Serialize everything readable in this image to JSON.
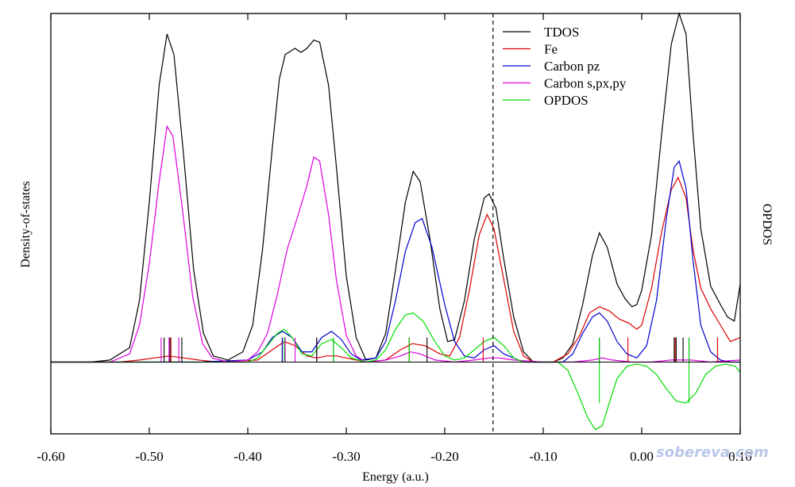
{
  "chart_data": {
    "type": "line",
    "title": "",
    "xlabel": "Energy (a.u.)",
    "ylabel_left": "Density-of-states",
    "ylabel_right": "OPDOS",
    "xlim": [
      -0.6,
      0.1
    ],
    "x_ticks": [
      -0.6,
      -0.5,
      -0.4,
      -0.3,
      -0.2,
      -0.1,
      0.0,
      0.1
    ],
    "x_tick_labels": [
      "-0.60",
      "-0.50",
      "-0.40",
      "-0.30",
      "-0.20",
      "-0.10",
      "0.00",
      "0.10"
    ],
    "ylim": [
      -0.35,
      1.7
    ],
    "opdos_scale": 1.0,
    "homo_line_x": -0.151,
    "legend_position": "top-right",
    "grid": false,
    "series": [
      {
        "name": "TDOS",
        "color": "#000000",
        "points": [
          [
            -0.6,
            0.0
          ],
          [
            -0.58,
            0.0
          ],
          [
            -0.56,
            0.0
          ],
          [
            -0.54,
            0.01
          ],
          [
            -0.52,
            0.07
          ],
          [
            -0.51,
            0.3
          ],
          [
            -0.5,
            0.78
          ],
          [
            -0.49,
            1.35
          ],
          [
            -0.482,
            1.6
          ],
          [
            -0.475,
            1.5
          ],
          [
            -0.465,
            1.0
          ],
          [
            -0.455,
            0.45
          ],
          [
            -0.445,
            0.14
          ],
          [
            -0.435,
            0.03
          ],
          [
            -0.42,
            0.01
          ],
          [
            -0.405,
            0.05
          ],
          [
            -0.395,
            0.18
          ],
          [
            -0.385,
            0.55
          ],
          [
            -0.375,
            1.05
          ],
          [
            -0.368,
            1.38
          ],
          [
            -0.362,
            1.5
          ],
          [
            -0.352,
            1.53
          ],
          [
            -0.346,
            1.51
          ],
          [
            -0.34,
            1.53
          ],
          [
            -0.333,
            1.57
          ],
          [
            -0.327,
            1.56
          ],
          [
            -0.318,
            1.35
          ],
          [
            -0.31,
            0.95
          ],
          [
            -0.3,
            0.42
          ],
          [
            -0.29,
            0.12
          ],
          [
            -0.28,
            0.01
          ],
          [
            -0.27,
            0.02
          ],
          [
            -0.26,
            0.14
          ],
          [
            -0.25,
            0.45
          ],
          [
            -0.24,
            0.78
          ],
          [
            -0.232,
            0.93
          ],
          [
            -0.225,
            0.88
          ],
          [
            -0.215,
            0.6
          ],
          [
            -0.205,
            0.26
          ],
          [
            -0.197,
            0.1
          ],
          [
            -0.19,
            0.11
          ],
          [
            -0.18,
            0.3
          ],
          [
            -0.17,
            0.6
          ],
          [
            -0.16,
            0.8
          ],
          [
            -0.155,
            0.82
          ],
          [
            -0.148,
            0.75
          ],
          [
            -0.14,
            0.5
          ],
          [
            -0.13,
            0.22
          ],
          [
            -0.12,
            0.05
          ],
          [
            -0.11,
            0.0
          ],
          [
            -0.1,
            0.0
          ],
          [
            -0.09,
            0.0
          ],
          [
            -0.08,
            0.02
          ],
          [
            -0.07,
            0.09
          ],
          [
            -0.06,
            0.28
          ],
          [
            -0.05,
            0.52
          ],
          [
            -0.043,
            0.63
          ],
          [
            -0.035,
            0.56
          ],
          [
            -0.025,
            0.38
          ],
          [
            -0.017,
            0.31
          ],
          [
            -0.01,
            0.27
          ],
          [
            -0.005,
            0.28
          ],
          [
            0.0,
            0.35
          ],
          [
            0.01,
            0.62
          ],
          [
            0.02,
            1.1
          ],
          [
            0.03,
            1.55
          ],
          [
            0.038,
            1.7
          ],
          [
            0.045,
            1.6
          ],
          [
            0.052,
            1.12
          ],
          [
            0.06,
            0.65
          ],
          [
            0.07,
            0.37
          ],
          [
            0.08,
            0.28
          ],
          [
            0.087,
            0.22
          ],
          [
            0.094,
            0.2
          ],
          [
            0.1,
            0.38
          ]
        ]
      },
      {
        "name": "Fe",
        "color": "#dd0000",
        "points": [
          [
            -0.6,
            0.0
          ],
          [
            -0.53,
            0.0
          ],
          [
            -0.51,
            0.01
          ],
          [
            -0.495,
            0.02
          ],
          [
            -0.48,
            0.03
          ],
          [
            -0.465,
            0.02
          ],
          [
            -0.45,
            0.01
          ],
          [
            -0.43,
            0.0
          ],
          [
            -0.39,
            0.01
          ],
          [
            -0.375,
            0.06
          ],
          [
            -0.363,
            0.1
          ],
          [
            -0.352,
            0.08
          ],
          [
            -0.34,
            0.03
          ],
          [
            -0.33,
            0.02
          ],
          [
            -0.32,
            0.03
          ],
          [
            -0.31,
            0.03
          ],
          [
            -0.3,
            0.02
          ],
          [
            -0.28,
            0.0
          ],
          [
            -0.26,
            0.01
          ],
          [
            -0.245,
            0.06
          ],
          [
            -0.233,
            0.09
          ],
          [
            -0.22,
            0.08
          ],
          [
            -0.205,
            0.04
          ],
          [
            -0.195,
            0.03
          ],
          [
            -0.185,
            0.12
          ],
          [
            -0.175,
            0.35
          ],
          [
            -0.165,
            0.62
          ],
          [
            -0.157,
            0.72
          ],
          [
            -0.15,
            0.65
          ],
          [
            -0.14,
            0.4
          ],
          [
            -0.13,
            0.15
          ],
          [
            -0.12,
            0.03
          ],
          [
            -0.11,
            0.0
          ],
          [
            -0.09,
            0.0
          ],
          [
            -0.075,
            0.04
          ],
          [
            -0.063,
            0.13
          ],
          [
            -0.053,
            0.24
          ],
          [
            -0.043,
            0.27
          ],
          [
            -0.033,
            0.25
          ],
          [
            -0.023,
            0.21
          ],
          [
            -0.013,
            0.19
          ],
          [
            -0.005,
            0.16
          ],
          [
            0.0,
            0.18
          ],
          [
            0.01,
            0.36
          ],
          [
            0.02,
            0.63
          ],
          [
            0.03,
            0.84
          ],
          [
            0.037,
            0.9
          ],
          [
            0.045,
            0.8
          ],
          [
            0.052,
            0.55
          ],
          [
            0.06,
            0.36
          ],
          [
            0.07,
            0.26
          ],
          [
            0.08,
            0.18
          ],
          [
            0.09,
            0.1
          ],
          [
            0.1,
            0.12
          ]
        ]
      },
      {
        "name": "Carbon pz",
        "color": "#0000cc",
        "points": [
          [
            -0.6,
            0.0
          ],
          [
            -0.52,
            0.0
          ],
          [
            -0.5,
            0.0
          ],
          [
            -0.45,
            0.0
          ],
          [
            -0.4,
            0.01
          ],
          [
            -0.385,
            0.05
          ],
          [
            -0.375,
            0.12
          ],
          [
            -0.365,
            0.15
          ],
          [
            -0.355,
            0.12
          ],
          [
            -0.345,
            0.05
          ],
          [
            -0.335,
            0.05
          ],
          [
            -0.325,
            0.12
          ],
          [
            -0.315,
            0.15
          ],
          [
            -0.305,
            0.11
          ],
          [
            -0.295,
            0.04
          ],
          [
            -0.285,
            0.01
          ],
          [
            -0.27,
            0.02
          ],
          [
            -0.26,
            0.1
          ],
          [
            -0.25,
            0.3
          ],
          [
            -0.24,
            0.54
          ],
          [
            -0.23,
            0.68
          ],
          [
            -0.223,
            0.7
          ],
          [
            -0.213,
            0.56
          ],
          [
            -0.2,
            0.28
          ],
          [
            -0.19,
            0.1
          ],
          [
            -0.18,
            0.03
          ],
          [
            -0.17,
            0.02
          ],
          [
            -0.16,
            0.06
          ],
          [
            -0.15,
            0.08
          ],
          [
            -0.14,
            0.04
          ],
          [
            -0.12,
            0.0
          ],
          [
            -0.1,
            0.0
          ],
          [
            -0.08,
            0.0
          ],
          [
            -0.07,
            0.04
          ],
          [
            -0.06,
            0.14
          ],
          [
            -0.05,
            0.22
          ],
          [
            -0.043,
            0.24
          ],
          [
            -0.035,
            0.2
          ],
          [
            -0.025,
            0.1
          ],
          [
            -0.015,
            0.04
          ],
          [
            -0.005,
            0.02
          ],
          [
            0.005,
            0.08
          ],
          [
            0.015,
            0.3
          ],
          [
            0.025,
            0.7
          ],
          [
            0.033,
            0.95
          ],
          [
            0.038,
            0.98
          ],
          [
            0.045,
            0.85
          ],
          [
            0.052,
            0.5
          ],
          [
            0.06,
            0.18
          ],
          [
            0.07,
            0.05
          ],
          [
            0.08,
            0.01
          ],
          [
            0.09,
            0.0
          ],
          [
            0.1,
            0.0
          ]
        ]
      },
      {
        "name": "Carbon s,px,py",
        "color": "#dd00dd",
        "points": [
          [
            -0.6,
            0.0
          ],
          [
            -0.54,
            0.0
          ],
          [
            -0.52,
            0.04
          ],
          [
            -0.51,
            0.18
          ],
          [
            -0.5,
            0.48
          ],
          [
            -0.49,
            0.88
          ],
          [
            -0.482,
            1.15
          ],
          [
            -0.476,
            1.1
          ],
          [
            -0.466,
            0.73
          ],
          [
            -0.456,
            0.32
          ],
          [
            -0.446,
            0.09
          ],
          [
            -0.436,
            0.02
          ],
          [
            -0.42,
            0.0
          ],
          [
            -0.4,
            0.01
          ],
          [
            -0.39,
            0.05
          ],
          [
            -0.38,
            0.14
          ],
          [
            -0.37,
            0.33
          ],
          [
            -0.36,
            0.55
          ],
          [
            -0.35,
            0.7
          ],
          [
            -0.34,
            0.86
          ],
          [
            -0.333,
            1.0
          ],
          [
            -0.327,
            0.98
          ],
          [
            -0.318,
            0.72
          ],
          [
            -0.31,
            0.4
          ],
          [
            -0.3,
            0.13
          ],
          [
            -0.29,
            0.03
          ],
          [
            -0.28,
            0.0
          ],
          [
            -0.26,
            0.01
          ],
          [
            -0.245,
            0.03
          ],
          [
            -0.235,
            0.05
          ],
          [
            -0.225,
            0.04
          ],
          [
            -0.21,
            0.01
          ],
          [
            -0.19,
            0.0
          ],
          [
            -0.17,
            0.01
          ],
          [
            -0.155,
            0.02
          ],
          [
            -0.145,
            0.02
          ],
          [
            -0.13,
            0.01
          ],
          [
            -0.1,
            0.0
          ],
          [
            -0.07,
            0.0
          ],
          [
            -0.05,
            0.01
          ],
          [
            -0.04,
            0.02
          ],
          [
            -0.03,
            0.01
          ],
          [
            -0.01,
            0.0
          ],
          [
            0.01,
            0.0
          ],
          [
            0.03,
            0.01
          ],
          [
            0.05,
            0.01
          ],
          [
            0.07,
            0.0
          ],
          [
            0.1,
            0.01
          ]
        ]
      },
      {
        "name": "OPDOS",
        "color": "#00dd00",
        "points": [
          [
            -0.6,
            0.0
          ],
          [
            -0.44,
            0.0
          ],
          [
            -0.4,
            0.0
          ],
          [
            -0.39,
            0.02
          ],
          [
            -0.38,
            0.08
          ],
          [
            -0.37,
            0.14
          ],
          [
            -0.363,
            0.16
          ],
          [
            -0.355,
            0.12
          ],
          [
            -0.345,
            0.04
          ],
          [
            -0.335,
            0.03
          ],
          [
            -0.325,
            0.09
          ],
          [
            -0.315,
            0.11
          ],
          [
            -0.305,
            0.07
          ],
          [
            -0.295,
            0.02
          ],
          [
            -0.28,
            0.0
          ],
          [
            -0.27,
            0.01
          ],
          [
            -0.26,
            0.06
          ],
          [
            -0.25,
            0.16
          ],
          [
            -0.24,
            0.23
          ],
          [
            -0.232,
            0.24
          ],
          [
            -0.222,
            0.2
          ],
          [
            -0.21,
            0.1
          ],
          [
            -0.2,
            0.03
          ],
          [
            -0.19,
            0.01
          ],
          [
            -0.18,
            0.02
          ],
          [
            -0.17,
            0.06
          ],
          [
            -0.16,
            0.1
          ],
          [
            -0.15,
            0.12
          ],
          [
            -0.14,
            0.08
          ],
          [
            -0.13,
            0.02
          ],
          [
            -0.12,
            0.0
          ],
          [
            -0.1,
            0.0
          ],
          [
            -0.085,
            0.0
          ],
          [
            -0.075,
            -0.04
          ],
          [
            -0.065,
            -0.15
          ],
          [
            -0.055,
            -0.27
          ],
          [
            -0.047,
            -0.33
          ],
          [
            -0.04,
            -0.31
          ],
          [
            -0.033,
            -0.2
          ],
          [
            -0.025,
            -0.08
          ],
          [
            -0.015,
            -0.02
          ],
          [
            -0.005,
            -0.01
          ],
          [
            0.005,
            -0.02
          ],
          [
            0.015,
            -0.06
          ],
          [
            0.025,
            -0.13
          ],
          [
            0.035,
            -0.19
          ],
          [
            0.045,
            -0.2
          ],
          [
            0.055,
            -0.15
          ],
          [
            0.065,
            -0.06
          ],
          [
            0.075,
            -0.02
          ],
          [
            0.085,
            -0.01
          ],
          [
            0.095,
            -0.02
          ],
          [
            0.1,
            -0.05
          ]
        ]
      }
    ],
    "sticks": [
      {
        "series": "Carbon s,px,py",
        "color": "#dd00dd",
        "x": [
          -0.488,
          -0.48,
          -0.47,
          -0.362,
          -0.352,
          -0.33
        ]
      },
      {
        "series": "TDOS",
        "color": "#000000",
        "x": [
          -0.485,
          -0.479,
          -0.467,
          -0.365,
          -0.33,
          -0.236,
          -0.218,
          -0.043,
          0.033,
          0.035,
          0.042,
          0.048,
          0.077
        ]
      },
      {
        "series": "Fe",
        "color": "#dd0000",
        "x": [
          -0.478,
          -0.236,
          -0.161,
          -0.014,
          0.034,
          0.077
        ]
      },
      {
        "series": "Carbon pz",
        "color": "#0000cc",
        "x": [
          -0.365,
          -0.313,
          0.048
        ]
      },
      {
        "series": "OPDOS",
        "color": "#00dd00",
        "x": [
          -0.363,
          -0.313,
          -0.236,
          -0.043,
          0.048
        ]
      }
    ],
    "stick_height": 0.12,
    "opdos_stick": {
      "x": [
        -0.043,
        0.048
      ],
      "from": 0.12,
      "to": -0.2
    }
  },
  "watermark": "sobereva.com"
}
